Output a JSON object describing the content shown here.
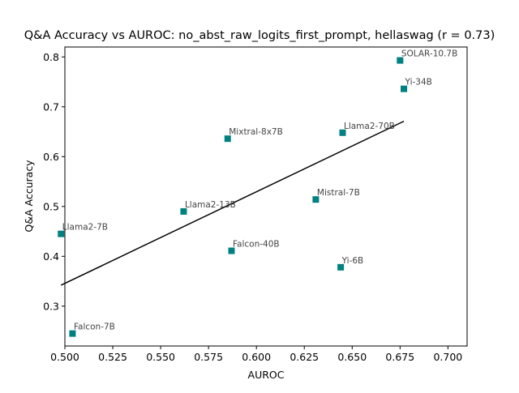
{
  "chart_data": {
    "type": "scatter",
    "title": "Q&A Accuracy vs AUROC: no_abst_raw_logits_first_prompt, hellaswag (r = 0.73)",
    "xlabel": "AUROC",
    "ylabel": "Q&A Accuracy",
    "xlim": [
      0.5,
      0.71
    ],
    "ylim": [
      0.22,
      0.82
    ],
    "xticks": [
      "0.500",
      "0.525",
      "0.550",
      "0.575",
      "0.600",
      "0.625",
      "0.650",
      "0.675",
      "0.700"
    ],
    "yticks": [
      "0.3",
      "0.4",
      "0.5",
      "0.6",
      "0.7",
      "0.8"
    ],
    "grid": false,
    "marker": "square",
    "marker_color": "#008080",
    "line_color": "#000000",
    "label_color": "#444444",
    "points": [
      {
        "label": "SOLAR-10.7B",
        "x": 0.675,
        "y": 0.793
      },
      {
        "label": "Yi-34B",
        "x": 0.677,
        "y": 0.736
      },
      {
        "label": "Llama2-70B",
        "x": 0.645,
        "y": 0.648
      },
      {
        "label": "Mixtral-8x7B",
        "x": 0.585,
        "y": 0.636
      },
      {
        "label": "Mistral-7B",
        "x": 0.631,
        "y": 0.514
      },
      {
        "label": "Llama2-13B",
        "x": 0.562,
        "y": 0.49
      },
      {
        "label": "Llama2-7B",
        "x": 0.498,
        "y": 0.445
      },
      {
        "label": "Falcon-40B",
        "x": 0.587,
        "y": 0.411
      },
      {
        "label": "Yi-6B",
        "x": 0.644,
        "y": 0.378
      },
      {
        "label": "Falcon-7B",
        "x": 0.504,
        "y": 0.245
      }
    ],
    "fit_line": {
      "x": [
        0.498,
        0.677
      ],
      "y": [
        0.342,
        0.671
      ]
    }
  }
}
